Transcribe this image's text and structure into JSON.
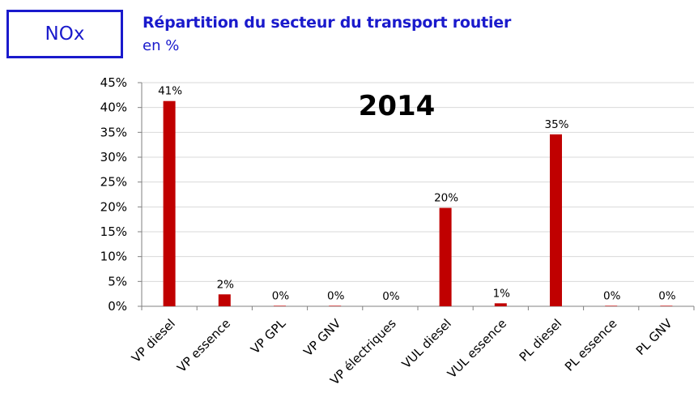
{
  "badge": {
    "label": "NOx"
  },
  "header": {
    "title": "Répartition du secteur du transport routier",
    "subtitle": "en %"
  },
  "colors": {
    "accent": "#1a1acc",
    "bar": "#c00000",
    "grid": "#d9d9d9",
    "axis": "#808080"
  },
  "chart_data": {
    "type": "bar",
    "annotation": "2014",
    "categories": [
      "VP diesel",
      "VP essence",
      "VP GPL",
      "VP GNV",
      "VP électriques",
      "VUL diesel",
      "VUL essence",
      "PL diesel",
      "PL essence",
      "PL GNV"
    ],
    "values": [
      41.3,
      2.4,
      0.1,
      0.1,
      0.0,
      19.8,
      0.6,
      34.6,
      0.1,
      0.1
    ],
    "data_labels": [
      "41%",
      "2%",
      "0%",
      "0%",
      "0%",
      "20%",
      "1%",
      "35%",
      "0%",
      "0%"
    ],
    "yticks": [
      "0%",
      "5%",
      "10%",
      "15%",
      "20%",
      "25%",
      "30%",
      "35%",
      "40%",
      "45%"
    ],
    "ylim": [
      0,
      45
    ],
    "ytick_step": 5,
    "grid": true,
    "legend": "none"
  }
}
